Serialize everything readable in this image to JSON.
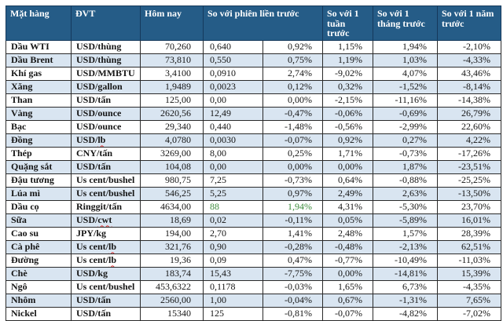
{
  "table": {
    "headers": {
      "item": "Mặt hàng",
      "unit": "ĐVT",
      "today": "Hôm nay",
      "session": "So với phiên liền trước",
      "week": "So với 1 tuần trước",
      "month": "So với 1 tháng trước",
      "year": "So với 1 năm trước"
    },
    "rows": [
      {
        "name": "Dầu WTI",
        "unit": "USD/thùng",
        "unit_flagged": "",
        "today": "70,260",
        "change": "0,640",
        "session_pct": "0,92%",
        "week_pct": "1,15%",
        "month_pct": "1,94%",
        "year_pct": "-2,10%",
        "green": false
      },
      {
        "name": "Dầu Brent",
        "unit": "USD/thùng",
        "unit_flagged": "",
        "today": "73,810",
        "change": "0,550",
        "session_pct": "0,75%",
        "week_pct": "1,19%",
        "month_pct": "1,03%",
        "year_pct": "-4,33%",
        "green": false
      },
      {
        "name": "Khí gas",
        "unit": "USD/MMBTU",
        "unit_flagged": "",
        "today": "3,4100",
        "change": "0,0910",
        "session_pct": "2,74%",
        "week_pct": "-9,02%",
        "month_pct": "4,07%",
        "year_pct": "43,46%",
        "green": false
      },
      {
        "name": "Xăng",
        "unit": "USD/gallon",
        "unit_flagged": "",
        "today": "1,9489",
        "change": "0,0023",
        "session_pct": "0,12%",
        "week_pct": "0,32%",
        "month_pct": "-1,52%",
        "year_pct": "-8,14%",
        "green": false
      },
      {
        "name": "Than",
        "unit": "USD/tấn",
        "unit_flagged": "",
        "today": "125,00",
        "change": "0,00",
        "session_pct": "0,00%",
        "week_pct": "-2,15%",
        "month_pct": "-11,16%",
        "year_pct": "-14,38%",
        "green": false
      },
      {
        "name": "Vàng",
        "unit": "USD/ounce",
        "unit_flagged": "",
        "today": "2620,56",
        "change": "12,49",
        "session_pct": "-0,47%",
        "week_pct": "-0,06%",
        "month_pct": "-0,69%",
        "year_pct": "26,79%",
        "green": false
      },
      {
        "name": "Bạc",
        "unit": "USD/ounce",
        "unit_flagged": "",
        "today": "29,340",
        "change": "0,440",
        "session_pct": "-1,48%",
        "week_pct": "-0,56%",
        "month_pct": "-2,99%",
        "year_pct": "22,60%",
        "green": false
      },
      {
        "name": "Đồng",
        "unit": "USD/",
        "unit_flagged": "lb",
        "today": "4,0780",
        "change": "0,0030",
        "session_pct": "-0,07%",
        "week_pct": "0,92%",
        "month_pct": "0,27%",
        "year_pct": "4,22%",
        "green": false
      },
      {
        "name": "Thép",
        "unit": "CNY/tấn",
        "unit_flagged": "",
        "today": "3269,00",
        "change": "8,00",
        "session_pct": "0,25%",
        "week_pct": "1,71%",
        "month_pct": "-0,73%",
        "year_pct": "-17,26%",
        "green": false
      },
      {
        "name": "Quặng sắt",
        "unit": "USD/tấn",
        "unit_flagged": "",
        "today": "104,08",
        "change": "0,00",
        "session_pct": "0,00%",
        "week_pct": "0,00%",
        "month_pct": "1,87%",
        "year_pct": "-23,51%",
        "green": false
      },
      {
        "name": "Đậu tương",
        "unit": "Us cent/bushel",
        "unit_flagged": "",
        "today": "980,75",
        "change": "7,25",
        "session_pct": "-0,73%",
        "week_pct": "0,64%",
        "month_pct": "-0,88%",
        "year_pct": "-25,25%",
        "green": false
      },
      {
        "name": "Lúa mì",
        "unit": "Us cent/bushel",
        "unit_flagged": "",
        "today": "546,25",
        "change": "5,25",
        "session_pct": "0,97%",
        "week_pct": "2,49%",
        "month_pct": "2,63%",
        "year_pct": "-13,50%",
        "green": false
      },
      {
        "name": "Dầu cọ",
        "unit": "Ringgit/tấn",
        "unit_flagged": "",
        "today": "4634,00",
        "change": "88",
        "session_pct": "1,94%",
        "week_pct": "4,31%",
        "month_pct": "-5,30%",
        "year_pct": "23,70%",
        "green": true
      },
      {
        "name": "Sữa",
        "unit": "USD/",
        "unit_flagged": "cwt",
        "today": "18,69",
        "change": "0,02",
        "session_pct": "-0,11%",
        "week_pct": "0,05%",
        "month_pct": "-5,89%",
        "year_pct": "16,01%",
        "green": false
      },
      {
        "name": "Cao su",
        "unit": "JPY/kg",
        "unit_flagged": "",
        "today": "194,00",
        "change": "2,70",
        "session_pct": "1,41%",
        "week_pct": "2,48%",
        "month_pct": "1,57%",
        "year_pct": "28,39%",
        "green": false
      },
      {
        "name": "Cà phê",
        "unit": "Us cent/",
        "unit_flagged": "lb",
        "today": "321,76",
        "change": "0,90",
        "session_pct": "-0,28%",
        "week_pct": "-0,48%",
        "month_pct": "-2,13%",
        "year_pct": "62,51%",
        "green": false
      },
      {
        "name": "Đường",
        "unit": "Us cent/",
        "unit_flagged": "lb",
        "today": "19,36",
        "change": "0,09",
        "session_pct": "0,47%",
        "week_pct": "-0,77%",
        "month_pct": "-10,49%",
        "year_pct": "-11,03%",
        "green": false
      },
      {
        "name": "Chè",
        "unit": "USD/kg",
        "unit_flagged": "",
        "today": "183,74",
        "change": "15,43",
        "session_pct": "-7,75%",
        "week_pct": "0,00%",
        "month_pct": "-14,81%",
        "year_pct": "15,39%",
        "green": false
      },
      {
        "name": "Ngô",
        "unit": "Us cent/bushel",
        "unit_flagged": "",
        "today": "453,6322",
        "change": "0,1178",
        "session_pct": "-0,03%",
        "week_pct": "1,65%",
        "month_pct": "6,73%",
        "year_pct": "-4,35%",
        "green": false
      },
      {
        "name": "Nhôm",
        "unit": "USD/tấn",
        "unit_flagged": "",
        "today": "2560,00",
        "change": "1,00",
        "session_pct": "-0,04%",
        "week_pct": "0,67%",
        "month_pct": "-1,31%",
        "year_pct": "7,65%",
        "green": false
      },
      {
        "name": "Nickel",
        "unit": "USD/tấn",
        "unit_flagged": "",
        "today": "15340",
        "change": "125",
        "session_pct": "-0,81%",
        "week_pct": "-0,07%",
        "month_pct": "-4,82%",
        "year_pct": "-7,02%",
        "green": false
      }
    ]
  },
  "colors": {
    "header_bg": "#255c87",
    "header_text": "#ffffff",
    "alt_row_bg": "#d9e5f1",
    "positive_highlight": "#3c8c3c",
    "spellcheck_underline": "#e03030"
  }
}
